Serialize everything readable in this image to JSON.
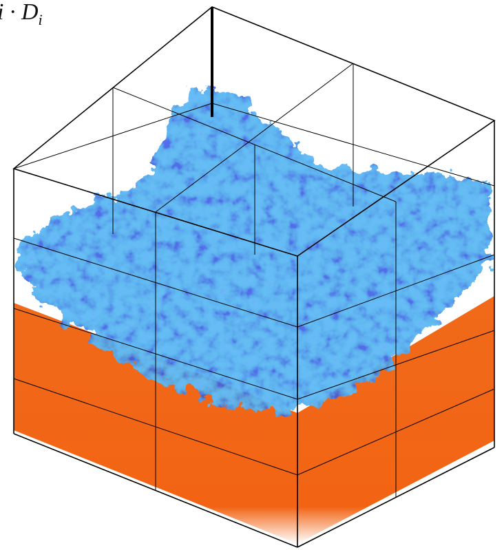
{
  "label": {
    "main": "i · D",
    "subscript": "i"
  }
}
